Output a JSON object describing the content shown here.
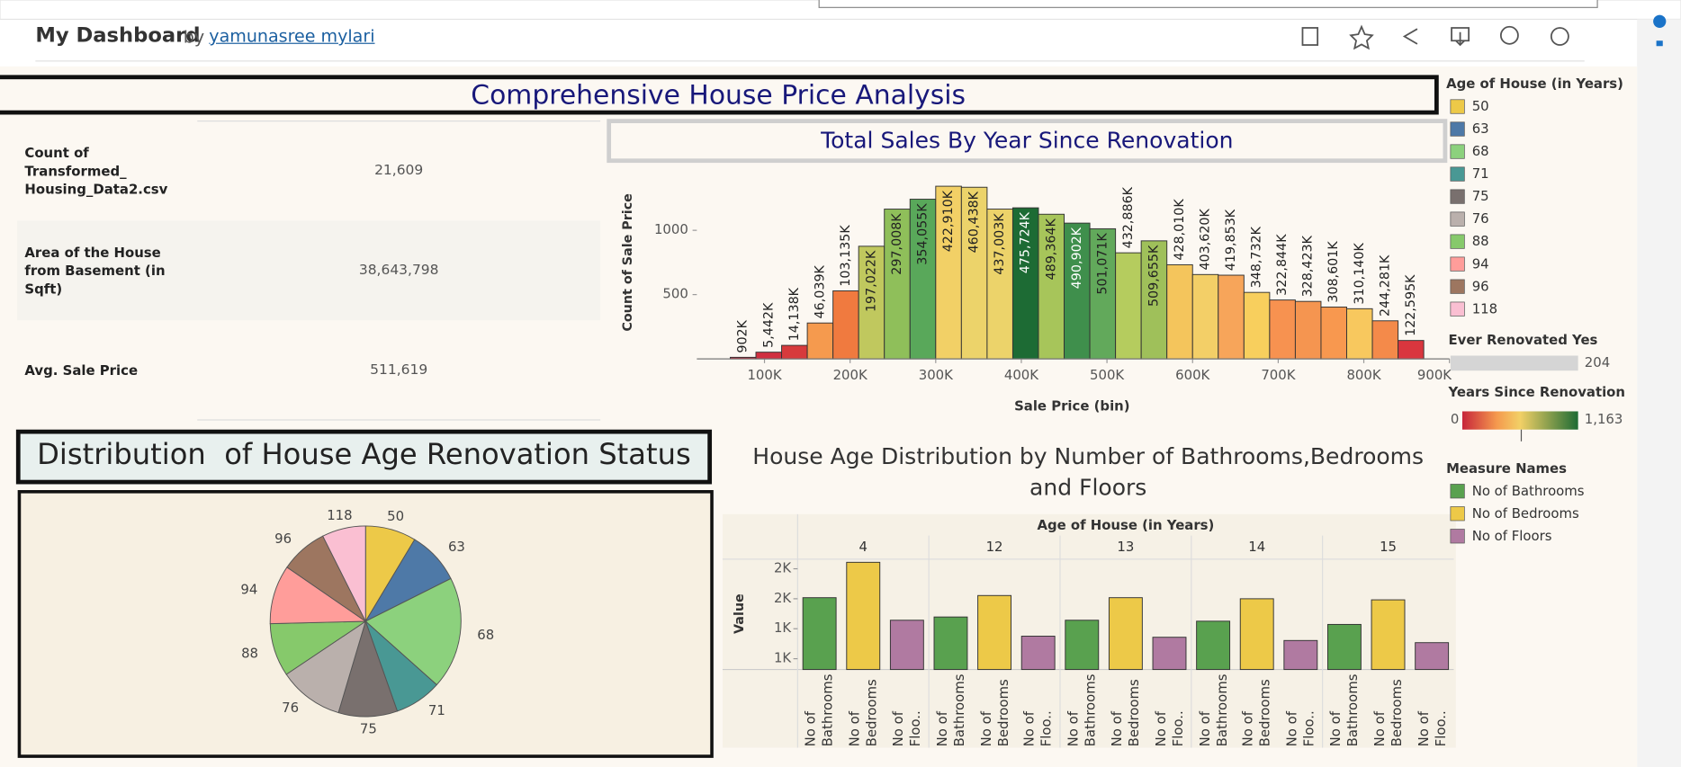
{
  "header": {
    "title": "My Dashboard",
    "by": "by",
    "author": "yamunasree mylari"
  },
  "dashboard_title": "Comprehensive House Price Analysis",
  "kpi_table": {
    "rows": [
      [
        "Count of Transformed_ Housing_Data2.csv",
        "21,609"
      ],
      [
        "Area of the House from Basement (in Sqft)",
        "38,643,798"
      ],
      [
        "Avg. Sale Price",
        "511,619"
      ]
    ]
  },
  "chart_data": [
    {
      "type": "histogram",
      "title": "Total Sales By Year Since Renovation",
      "x_label": "Sale Price (bin)",
      "y_label": "Count of Sale Price",
      "bins": [
        60000,
        90000,
        120000,
        150000,
        180000,
        210000,
        240000,
        270000,
        300000,
        330000,
        360000,
        390000,
        420000,
        450000,
        480000,
        510000,
        540000,
        570000,
        600000,
        630000,
        660000,
        690000,
        720000,
        750000,
        780000,
        810000,
        840000,
        870000
      ],
      "values": [
        12,
        52,
        105,
        279,
        529,
        876,
        1165,
        1242,
        1343,
        1335,
        1165,
        1175,
        1125,
        1056,
        1012,
        825,
        918,
        732,
        656,
        651,
        517,
        458,
        447,
        403,
        390,
        296,
        143
      ],
      "bar_labels": [
        "902K",
        "5,442K",
        "14,138K",
        "46,039K",
        "103,135K",
        "197,022K",
        "297,008K",
        "354,055K",
        "422,910K",
        "460,438K",
        "437,003K",
        "475,724K",
        "489,364K",
        "490,902K",
        "501,071K",
        "432,886K",
        "509,655K",
        "428,010K",
        "403,620K",
        "419,853K",
        "348,732K",
        "322,844K",
        "328,423K",
        "308,601K",
        "310,140K",
        "244,281K",
        "122,595K"
      ],
      "colors": [
        "#c7253a",
        "#d03040",
        "#d73a3c",
        "#f59a4e",
        "#f07a3f",
        "#c0c85e",
        "#8fbf5a",
        "#59a85a",
        "#f2d066",
        "#ecd36a",
        "#ecd36a",
        "#1d6b34",
        "#a7c55a",
        "#3f8f4c",
        "#62a95b",
        "#b5cc5e",
        "#9fc05a",
        "#f4c55c",
        "#f3cf67",
        "#f7a55a",
        "#f8cf5d",
        "#f79250",
        "#f59550",
        "#f8984f",
        "#f8c85e",
        "#f48a4a",
        "#d9363e"
      ],
      "xlim": [
        21000,
        900000
      ],
      "xticks": [
        {
          "value": 100000,
          "label": "100K"
        },
        {
          "value": 200000,
          "label": "200K"
        },
        {
          "value": 300000,
          "label": "300K"
        },
        {
          "value": 400000,
          "label": "400K"
        },
        {
          "value": 500000,
          "label": "500K"
        },
        {
          "value": 600000,
          "label": "600K"
        },
        {
          "value": 700000,
          "label": "700K"
        },
        {
          "value": 800000,
          "label": "800K"
        },
        {
          "value": 900000,
          "label": "900K"
        }
      ],
      "ylim": [
        0,
        1450
      ],
      "yticks": [
        500,
        1000
      ],
      "size_legend": {
        "title": "Ever Renovated Yes",
        "value": 204
      },
      "color_legend": {
        "title": "Years Since Renovation",
        "min": 0,
        "max": {
          "value": 1163,
          "label": "1,163"
        }
      }
    },
    {
      "type": "pie",
      "title": "Distribution  of House Age Renovation Status",
      "legend_title": "Age of House (in Years)",
      "categories": [
        "50",
        "63",
        "68",
        "71",
        "75",
        "76",
        "88",
        "94",
        "96",
        "118"
      ],
      "values": [
        8.6,
        9,
        19,
        8,
        10,
        11,
        9,
        10,
        8,
        7.4
      ],
      "colors": [
        "#edc948",
        "#4e79a7",
        "#8cd17d",
        "#499894",
        "#79706e",
        "#bab0ac",
        "#86c96b",
        "#ff9d9a",
        "#9d7660",
        "#fabfd2"
      ]
    },
    {
      "type": "grouped_bar",
      "title": "House Age Distribution by Number of Bathrooms,Bedrooms and Floors",
      "facet_title": "Age of House (in Years)",
      "y_label": "Value",
      "legend_title": "Measure Names",
      "facets": [
        "4",
        "12",
        "13",
        "14",
        "15"
      ],
      "bar_labels": [
        "No of Bathrooms",
        "No of Bedrooms",
        "No of Floo.."
      ],
      "series": [
        {
          "name": "No of Bathrooms",
          "color": "#59a14f",
          "values": [
            1509,
            1348,
            1321,
            1313,
            1286
          ]
        },
        {
          "name": "No of Bedrooms",
          "color": "#edc948",
          "values": [
            1804,
            1527,
            1509,
            1500,
            1491
          ]
        },
        {
          "name": "No of Floors",
          "color": "#b07aa1",
          "values": [
            1321,
            1188,
            1179,
            1152,
            1134
          ]
        }
      ],
      "ylim": [
        910,
        1830
      ],
      "yticks": [
        {
          "value": 1000,
          "label": "1K"
        },
        {
          "value": 1250,
          "label": "1K"
        },
        {
          "value": 1500,
          "label": "2K"
        },
        {
          "value": 1750,
          "label": "2K"
        }
      ]
    }
  ]
}
